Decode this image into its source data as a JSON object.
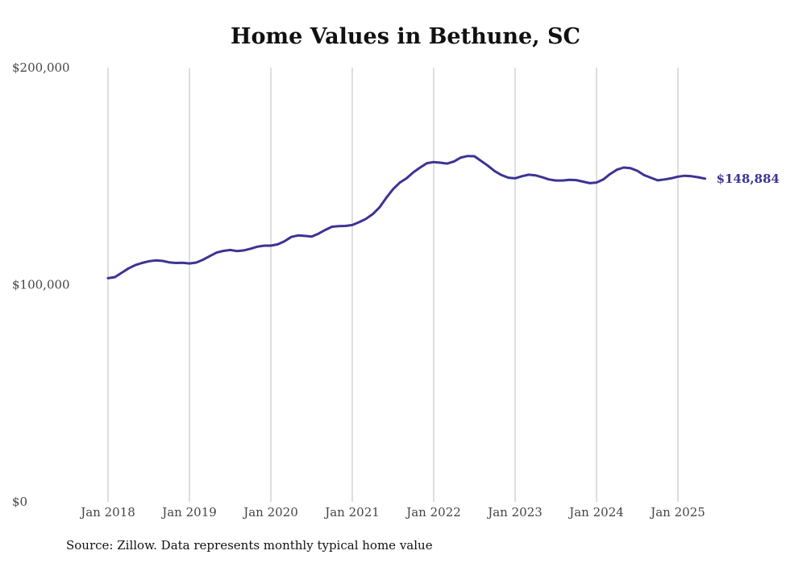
{
  "chart_data": {
    "type": "line",
    "title": "Home Values in Bethune, SC",
    "xlabel": "",
    "ylabel": "",
    "ylim": [
      0,
      200000
    ],
    "y_ticks": [
      0,
      100000,
      200000
    ],
    "y_tick_labels": [
      "$0",
      "$100,000",
      "$200,000"
    ],
    "x_tick_labels": [
      "Jan 2018",
      "Jan 2019",
      "Jan 2020",
      "Jan 2021",
      "Jan 2022",
      "Jan 2023",
      "Jan 2024",
      "Jan 2025"
    ],
    "x_tick_dates": [
      "2018-01",
      "2019-01",
      "2020-01",
      "2021-01",
      "2022-01",
      "2023-01",
      "2024-01",
      "2025-01"
    ],
    "grid": "vertical",
    "legend": "none",
    "end_label": "$148,884",
    "series": [
      {
        "color": "#3b3494",
        "points": [
          [
            "2018-01",
            103000
          ],
          [
            "2018-02",
            103500
          ],
          [
            "2018-03",
            105500
          ],
          [
            "2018-04",
            107500
          ],
          [
            "2018-05",
            109000
          ],
          [
            "2018-06",
            110000
          ],
          [
            "2018-07",
            110800
          ],
          [
            "2018-08",
            111200
          ],
          [
            "2018-09",
            111000
          ],
          [
            "2018-10",
            110300
          ],
          [
            "2018-11",
            110000
          ],
          [
            "2018-12",
            110100
          ],
          [
            "2019-01",
            109800
          ],
          [
            "2019-02",
            110200
          ],
          [
            "2019-03",
            111500
          ],
          [
            "2019-04",
            113200
          ],
          [
            "2019-05",
            114800
          ],
          [
            "2019-06",
            115600
          ],
          [
            "2019-07",
            116000
          ],
          [
            "2019-08",
            115500
          ],
          [
            "2019-09",
            115800
          ],
          [
            "2019-10",
            116600
          ],
          [
            "2019-11",
            117500
          ],
          [
            "2019-12",
            118000
          ],
          [
            "2020-01",
            118000
          ],
          [
            "2020-02",
            118600
          ],
          [
            "2020-03",
            120000
          ],
          [
            "2020-04",
            122000
          ],
          [
            "2020-05",
            122700
          ],
          [
            "2020-06",
            122500
          ],
          [
            "2020-07",
            122200
          ],
          [
            "2020-08",
            123500
          ],
          [
            "2020-09",
            125200
          ],
          [
            "2020-10",
            126700
          ],
          [
            "2020-11",
            127000
          ],
          [
            "2020-12",
            127100
          ],
          [
            "2021-01",
            127500
          ],
          [
            "2021-02",
            128800
          ],
          [
            "2021-03",
            130300
          ],
          [
            "2021-04",
            132500
          ],
          [
            "2021-05",
            135600
          ],
          [
            "2021-06",
            140000
          ],
          [
            "2021-07",
            144000
          ],
          [
            "2021-08",
            147000
          ],
          [
            "2021-09",
            149000
          ],
          [
            "2021-10",
            151800
          ],
          [
            "2021-11",
            154000
          ],
          [
            "2021-12",
            156000
          ],
          [
            "2022-01",
            156500
          ],
          [
            "2022-02",
            156200
          ],
          [
            "2022-03",
            155800
          ],
          [
            "2022-04",
            156800
          ],
          [
            "2022-05",
            158600
          ],
          [
            "2022-06",
            159300
          ],
          [
            "2022-07",
            159200
          ],
          [
            "2022-08",
            157000
          ],
          [
            "2022-09",
            154800
          ],
          [
            "2022-10",
            152300
          ],
          [
            "2022-11",
            150500
          ],
          [
            "2022-12",
            149300
          ],
          [
            "2023-01",
            149000
          ],
          [
            "2023-02",
            150000
          ],
          [
            "2023-03",
            150700
          ],
          [
            "2023-04",
            150400
          ],
          [
            "2023-05",
            149500
          ],
          [
            "2023-06",
            148500
          ],
          [
            "2023-07",
            148000
          ],
          [
            "2023-08",
            148000
          ],
          [
            "2023-09",
            148300
          ],
          [
            "2023-10",
            148200
          ],
          [
            "2023-11",
            147500
          ],
          [
            "2023-12",
            146800
          ],
          [
            "2024-01",
            147100
          ],
          [
            "2024-02",
            148500
          ],
          [
            "2024-03",
            151000
          ],
          [
            "2024-04",
            153000
          ],
          [
            "2024-05",
            154000
          ],
          [
            "2024-06",
            153700
          ],
          [
            "2024-07",
            152500
          ],
          [
            "2024-08",
            150500
          ],
          [
            "2024-09",
            149300
          ],
          [
            "2024-10",
            148100
          ],
          [
            "2024-11",
            148500
          ],
          [
            "2024-12",
            149000
          ],
          [
            "2025-01",
            149800
          ],
          [
            "2025-02",
            150200
          ],
          [
            "2025-03",
            150000
          ],
          [
            "2025-04",
            149500
          ],
          [
            "2025-05",
            148884
          ]
        ]
      }
    ]
  },
  "source_note": "Source: Zillow. Data represents monthly typical home value"
}
